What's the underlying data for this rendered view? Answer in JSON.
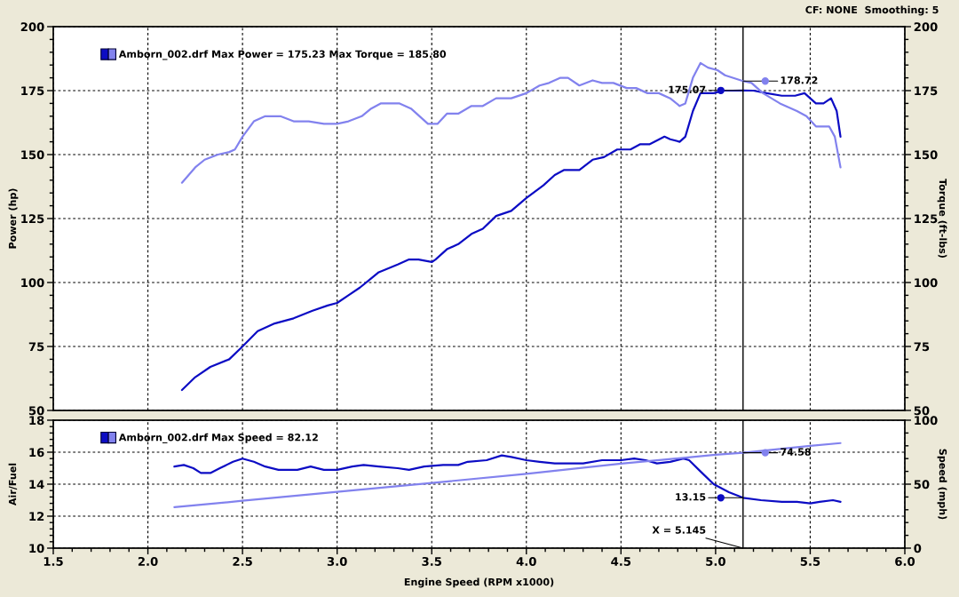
{
  "chart_data": [
    {
      "type": "line",
      "ylabel": "Power (hp)",
      "y2label": "Torque (ft-lbs)",
      "annotations": [
        "CF: NONE  Smoothing: 5"
      ],
      "series": [
        {
          "name": "Amborn_002.drf Max Power = 175.23 Max Torque = 185.80",
          "color": "#0c0cc4",
          "x": [
            2.18,
            2.25,
            2.33,
            2.43,
            2.5,
            2.58,
            2.67,
            2.77,
            2.87,
            2.95,
            3.0,
            3.06,
            3.12,
            3.17,
            3.22,
            3.32,
            3.38,
            3.43,
            3.5,
            3.52,
            3.58,
            3.64,
            3.71,
            3.77,
            3.84,
            3.92,
            4.0,
            4.09,
            4.15,
            4.2,
            4.28,
            4.35,
            4.41,
            4.48,
            4.55,
            4.6,
            4.65,
            4.73,
            4.76,
            4.81,
            4.84,
            4.88,
            4.92,
            4.99,
            5.04,
            5.09,
            5.145,
            5.2,
            5.27,
            5.35,
            5.42,
            5.47,
            5.53,
            5.57,
            5.61,
            5.64,
            5.66
          ],
          "values": [
            58,
            63,
            67,
            70,
            75,
            81,
            84,
            86,
            89,
            91,
            92,
            95,
            98,
            101,
            104,
            107,
            109,
            109,
            108,
            109,
            113,
            115,
            119,
            121,
            126,
            128,
            133,
            138,
            142,
            144,
            144,
            148,
            149,
            152,
            152,
            154,
            154,
            157,
            156,
            155,
            157,
            167,
            174,
            174,
            175,
            175,
            175.07,
            175,
            174,
            173,
            173,
            174,
            170,
            170,
            172,
            167,
            157
          ],
          "value_labels": [
            null,
            null,
            null,
            null,
            null,
            null,
            null,
            null,
            null,
            null,
            null,
            null,
            null,
            null,
            null,
            null,
            null,
            null,
            null,
            null,
            null,
            null,
            null,
            null,
            null,
            null,
            null,
            null,
            null,
            null,
            null,
            null,
            null,
            null,
            null,
            null,
            null,
            null,
            null,
            null,
            null,
            null,
            null,
            null,
            null,
            null,
            "175.07",
            null,
            null,
            null,
            null,
            null,
            null,
            null,
            null,
            null,
            null
          ]
        },
        {
          "color": "#8282ee",
          "axis": "y2",
          "x": [
            2.18,
            2.25,
            2.3,
            2.37,
            2.43,
            2.46,
            2.5,
            2.56,
            2.62,
            2.7,
            2.77,
            2.85,
            2.93,
            3.0,
            3.06,
            3.13,
            3.18,
            3.23,
            3.28,
            3.33,
            3.39,
            3.45,
            3.48,
            3.53,
            3.58,
            3.64,
            3.71,
            3.77,
            3.84,
            3.92,
            4.0,
            4.07,
            4.12,
            4.18,
            4.22,
            4.28,
            4.35,
            4.4,
            4.46,
            4.53,
            4.58,
            4.64,
            4.7,
            4.76,
            4.81,
            4.84,
            4.88,
            4.92,
            4.96,
            5.01,
            5.05,
            5.145,
            5.19,
            5.25,
            5.34,
            5.43,
            5.48,
            5.53,
            5.6,
            5.63,
            5.66
          ],
          "values": [
            139,
            145,
            148,
            150,
            151,
            152,
            157,
            163,
            165,
            165,
            163,
            163,
            162,
            162,
            163,
            165,
            168,
            170,
            170,
            170,
            168,
            164,
            162,
            162,
            166,
            166,
            169,
            169,
            172,
            172,
            174,
            177,
            178,
            180,
            180,
            177,
            179,
            178,
            178,
            176,
            176,
            174,
            174,
            172,
            169,
            170,
            180,
            185.8,
            184,
            183,
            181,
            178.72,
            178,
            174,
            170,
            167,
            165,
            161,
            161,
            157,
            145
          ],
          "value_labels": [
            null,
            null,
            null,
            null,
            null,
            null,
            null,
            null,
            null,
            null,
            null,
            null,
            null,
            null,
            null,
            null,
            null,
            null,
            null,
            null,
            null,
            null,
            null,
            null,
            null,
            null,
            null,
            null,
            null,
            null,
            null,
            null,
            null,
            null,
            null,
            null,
            null,
            null,
            null,
            null,
            null,
            null,
            null,
            null,
            null,
            null,
            null,
            null,
            null,
            null,
            null,
            "178.72",
            null,
            null,
            null,
            null,
            null,
            null,
            null,
            null,
            null
          ]
        }
      ],
      "xlim": [
        1.5,
        6
      ],
      "xticks": [
        1.5,
        2,
        2.5,
        3,
        3.5,
        4,
        4.5,
        5,
        5.5,
        6
      ],
      "ylim": [
        50,
        200
      ],
      "yticks": [
        50,
        75,
        100,
        125,
        150,
        175,
        200
      ],
      "y2lim": [
        50,
        200
      ],
      "y2ticks": [
        50,
        75,
        100,
        125,
        150,
        175,
        200
      ],
      "ref_lines": [
        {
          "axis": "x",
          "value": 5.145,
          "color": "#000000"
        }
      ],
      "grid": true,
      "legend": "top left",
      "tick_labels": "y"
    },
    {
      "type": "line",
      "xlabel": "Engine Speed (RPM x1000)",
      "ylabel": "Air/Fuel",
      "y2label": "Speed (mph)",
      "series": [
        {
          "name": "Amborn_002.drf Max Speed = 82.12",
          "color": "#0c0cc4",
          "x": [
            2.14,
            2.19,
            2.24,
            2.28,
            2.33,
            2.38,
            2.45,
            2.5,
            2.56,
            2.62,
            2.69,
            2.79,
            2.86,
            2.93,
            3.0,
            3.08,
            3.14,
            3.22,
            3.32,
            3.38,
            3.46,
            3.56,
            3.64,
            3.69,
            3.79,
            3.87,
            3.92,
            4.0,
            4.07,
            4.15,
            4.23,
            4.3,
            4.4,
            4.5,
            4.57,
            4.63,
            4.69,
            4.76,
            4.83,
            4.86,
            4.92,
            4.99,
            5.07,
            5.145,
            5.24,
            5.35,
            5.43,
            5.5,
            5.55,
            5.62,
            5.66
          ],
          "values": [
            15.1,
            15.2,
            15.0,
            14.7,
            14.7,
            15.0,
            15.4,
            15.6,
            15.4,
            15.1,
            14.9,
            14.9,
            15.1,
            14.9,
            14.9,
            15.1,
            15.2,
            15.1,
            15.0,
            14.9,
            15.1,
            15.2,
            15.2,
            15.4,
            15.5,
            15.8,
            15.7,
            15.5,
            15.4,
            15.3,
            15.3,
            15.3,
            15.5,
            15.5,
            15.6,
            15.5,
            15.3,
            15.4,
            15.6,
            15.5,
            14.8,
            14.0,
            13.5,
            13.15,
            13.0,
            12.9,
            12.9,
            12.8,
            12.9,
            13.0,
            12.9
          ],
          "value_labels": [
            null,
            null,
            null,
            null,
            null,
            null,
            null,
            null,
            null,
            null,
            null,
            null,
            null,
            null,
            null,
            null,
            null,
            null,
            null,
            null,
            null,
            null,
            null,
            null,
            null,
            null,
            null,
            null,
            null,
            null,
            null,
            null,
            null,
            null,
            null,
            null,
            null,
            null,
            null,
            null,
            null,
            null,
            null,
            "13.15",
            null,
            null,
            null,
            null,
            null,
            null,
            null
          ]
        },
        {
          "color": "#8282ee",
          "axis": "y2",
          "x": [
            2.14,
            2.5,
            3.0,
            3.5,
            4.0,
            4.5,
            5.0,
            5.145,
            5.5,
            5.66
          ],
          "values": [
            32,
            37,
            44,
            51,
            58,
            66,
            73,
            74.58,
            80,
            82.12
          ],
          "value_labels": [
            null,
            null,
            null,
            null,
            null,
            null,
            null,
            "74.58",
            null,
            null
          ]
        }
      ],
      "xlim": [
        1.5,
        6
      ],
      "xticks": [
        1.5,
        {
          "value": 2,
          "label": "2.0"
        },
        2.5,
        {
          "value": 3,
          "label": "3.0"
        },
        3.5,
        {
          "value": 4,
          "label": "4.0"
        },
        4.5,
        {
          "value": 5,
          "label": "5.0"
        },
        5.5,
        {
          "value": 6,
          "label": "6.0"
        }
      ],
      "ylim": [
        10,
        18
      ],
      "yticks": [
        10,
        12,
        14,
        16,
        18
      ],
      "y2lim": [
        0,
        100
      ],
      "y2ticks": [
        0,
        50,
        100
      ],
      "ref_lines": [
        {
          "axis": "x",
          "value": 5.145,
          "label": "X = 5.145",
          "color": "#000000"
        }
      ],
      "grid": true,
      "legend": "top left"
    }
  ]
}
